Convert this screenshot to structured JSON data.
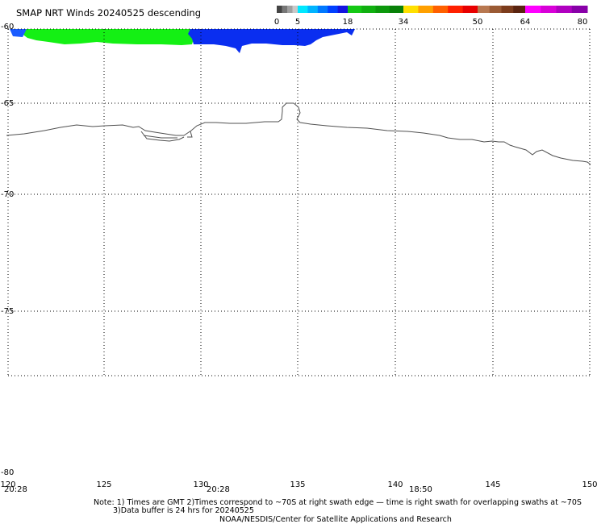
{
  "title": "SMAP NRT Winds  20240525 descending",
  "colorbar": {
    "tick_labels": [
      "0",
      "5",
      "18",
      "34",
      "50",
      "64",
      "80"
    ],
    "segments": [
      {
        "from": 0,
        "to": 5,
        "colors": [
          "#444444",
          "#777777",
          "#a0a0a0",
          "#c8c8c8"
        ]
      },
      {
        "from": 5,
        "to": 18,
        "colors": [
          "#00e8ff",
          "#00b4ff",
          "#0078ff",
          "#0040ff",
          "#1414e0"
        ]
      },
      {
        "from": 18,
        "to": 34,
        "colors": [
          "#14c814",
          "#10b010",
          "#0c980c",
          "#088008"
        ]
      },
      {
        "from": 34,
        "to": 50,
        "colors": [
          "#ffe000",
          "#ffa000",
          "#ff6000",
          "#ff2000",
          "#e80000"
        ]
      },
      {
        "from": 50,
        "to": 64,
        "colors": [
          "#b87850",
          "#9a5a34",
          "#7c3c1c",
          "#5a2410"
        ]
      },
      {
        "from": 64,
        "to": 80,
        "colors": [
          "#ff00ff",
          "#d800d8",
          "#b000c0",
          "#8800a8"
        ]
      }
    ]
  },
  "map": {
    "lon_range": [
      120,
      150
    ],
    "lat_range": [
      -60,
      -80
    ],
    "lon_ticks": [
      "120",
      "125",
      "130",
      "135",
      "140",
      "145",
      "150"
    ],
    "lat_ticks": [
      "-60",
      "-65",
      "-70",
      "-75",
      "-80"
    ],
    "gridlines": "dotted",
    "swath_times": [
      "20:28",
      "20:28",
      "18:50"
    ],
    "swath_colors": {
      "green": "#14f014",
      "blue": "#0a2ef0",
      "blue_edge": "#1a5cff"
    },
    "coastline_color": "#505050"
  },
  "notes": {
    "line1": "Note: 1) Times are GMT 2)Times correspond to ~70S at right swath edge — time is right swath for overlapping swaths at ~70S",
    "line2": "3)Data buffer is 24 hrs for 20240525",
    "credit": "NOAA/NESDIS/Center for Satellite Applications and Research"
  }
}
